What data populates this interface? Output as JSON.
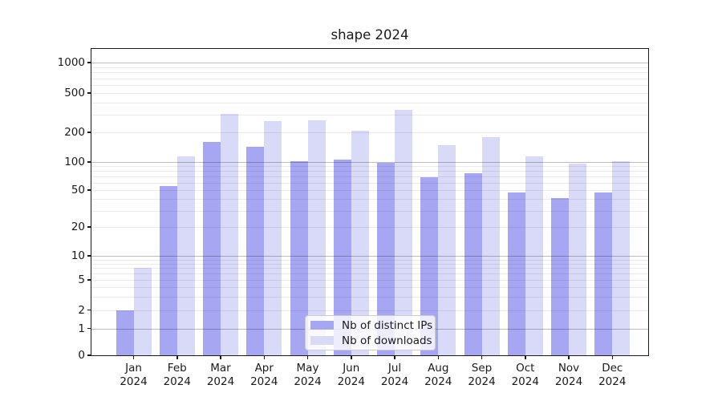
{
  "title": "shape 2024",
  "chart_data": {
    "type": "bar",
    "title": "shape 2024",
    "categories": [
      "Jan 2024",
      "Feb 2024",
      "Mar 2024",
      "Apr 2024",
      "May 2024",
      "Jun 2024",
      "Jul 2024",
      "Aug 2024",
      "Sep 2024",
      "Oct 2024",
      "Nov 2024",
      "Dec 2024"
    ],
    "series": [
      {
        "name": "Nb of distinct IPs",
        "color": "#a6a6f2",
        "values": [
          2,
          55,
          160,
          142,
          101,
          106,
          98,
          68,
          76,
          47,
          41,
          47
        ]
      },
      {
        "name": "Nb of downloads",
        "color": "#d9d9f8",
        "values": [
          7,
          115,
          305,
          258,
          265,
          207,
          335,
          148,
          179,
          114,
          96,
          102
        ]
      }
    ],
    "xlabel": "",
    "ylabel": "",
    "y_scale": "symlog",
    "y_ticks": [
      0,
      1,
      2,
      5,
      10,
      20,
      50,
      100,
      200,
      500,
      1000
    ],
    "ylim": [
      0,
      1300
    ],
    "grid": true,
    "grid_position": "above-bars",
    "legend_position": "lower center"
  },
  "colors": {
    "bar_distinct_ips": "#a6a6f2",
    "bar_downloads": "#d9d9f8",
    "major_gridline": "rgba(0,0,0,0.26)",
    "minor_gridline": "rgba(0,0,0,0.08)",
    "axis": "#1a1a1a",
    "legend_border": "#cccccc"
  }
}
